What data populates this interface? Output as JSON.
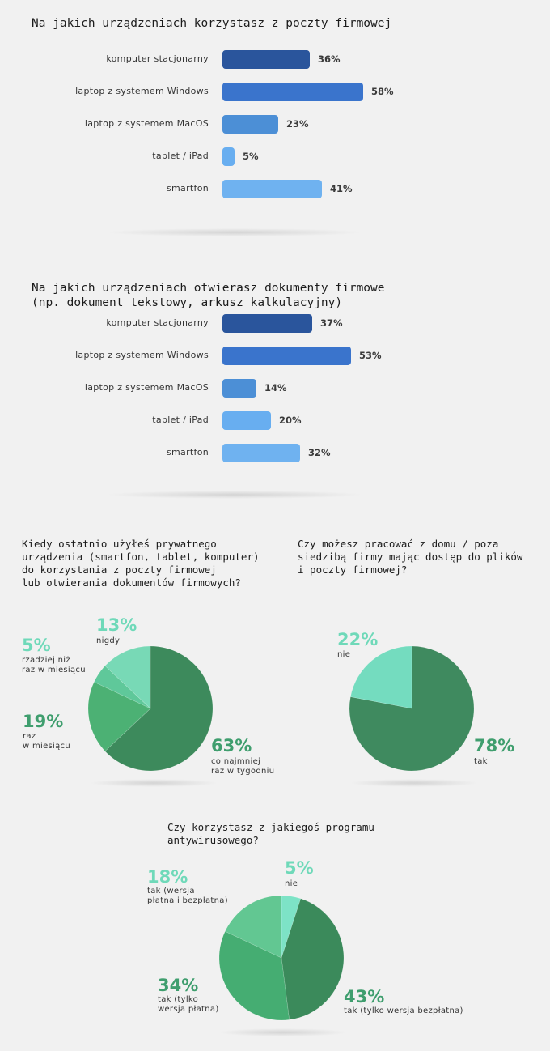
{
  "chart_data": [
    {
      "type": "bar",
      "title": "Na jakich urządzeniach korzystasz z poczty firmowej",
      "categories": [
        "komputer stacjonarny",
        "laptop z systemem Windows",
        "laptop z systemem MacOS",
        "tablet / iPad",
        "smartfon"
      ],
      "values": [
        36,
        58,
        23,
        5,
        41
      ],
      "value_labels": [
        "36%",
        "58%",
        "23%",
        "5%",
        "41%"
      ],
      "colors": [
        "#2a559c",
        "#3a74cc",
        "#4c8fd6",
        "#68aef0",
        "#6fb2f0"
      ],
      "unit": "%"
    },
    {
      "type": "bar",
      "title": "Na jakich urządzeniach otwierasz dokumenty firmowe\n(np. dokument tekstowy, arkusz kalkulacyjny)",
      "categories": [
        "komputer stacjonarny",
        "laptop z systemem Windows",
        "laptop z systemem MacOS",
        "tablet / iPad",
        "smartfon"
      ],
      "values": [
        37,
        53,
        14,
        20,
        32
      ],
      "value_labels": [
        "37%",
        "53%",
        "14%",
        "20%",
        "32%"
      ],
      "colors": [
        "#2a559c",
        "#3a74cc",
        "#4c8fd6",
        "#68aef0",
        "#6fb2f0"
      ],
      "unit": "%"
    },
    {
      "type": "pie",
      "title": "Kiedy ostatnio użyłeś prywatnego\nurządzenia (smartfon, tablet, komputer)\ndo korzystania z poczty firmowej\nlub otwierania dokumentów firmowych?",
      "slices": [
        {
          "label": "co najmniej\nraz w tygodniu",
          "value": 63,
          "value_label": "63%",
          "color": "#3d8a5c"
        },
        {
          "label": "raz\nw miesiącu",
          "value": 19,
          "value_label": "19%",
          "color": "#4cb174"
        },
        {
          "label": "rzadziej niż\nraz w miesiącu",
          "value": 5,
          "value_label": "5%",
          "color": "#5fc89a"
        },
        {
          "label": "nigdy",
          "value": 13,
          "value_label": "13%",
          "color": "#78d9b6"
        }
      ]
    },
    {
      "type": "pie",
      "title": "Czy możesz pracować z domu / poza\nsiedzibą firmy mając dostęp do plików\ni poczty firmowej?",
      "slices": [
        {
          "label": "tak",
          "value": 78,
          "value_label": "78%",
          "color": "#3f8a5f"
        },
        {
          "label": "nie",
          "value": 22,
          "value_label": "22%",
          "color": "#74dcbf"
        }
      ]
    },
    {
      "type": "pie",
      "title": "Czy korzystasz z jakiegoś programu\nantywirusowego?",
      "slices": [
        {
          "label": "nie",
          "value": 5,
          "value_label": "5%",
          "color": "#7de3c6"
        },
        {
          "label": "tak (tylko wersja bezpłatna)",
          "value": 43,
          "value_label": "43%",
          "color": "#3b8a5b"
        },
        {
          "label": "tak (tylko\nwersja płatna)",
          "value": 34,
          "value_label": "34%",
          "color": "#45ad72"
        },
        {
          "label": "tak (wersja\npłatna i bezpłatna)",
          "value": 18,
          "value_label": "18%",
          "color": "#62c792"
        }
      ]
    }
  ]
}
